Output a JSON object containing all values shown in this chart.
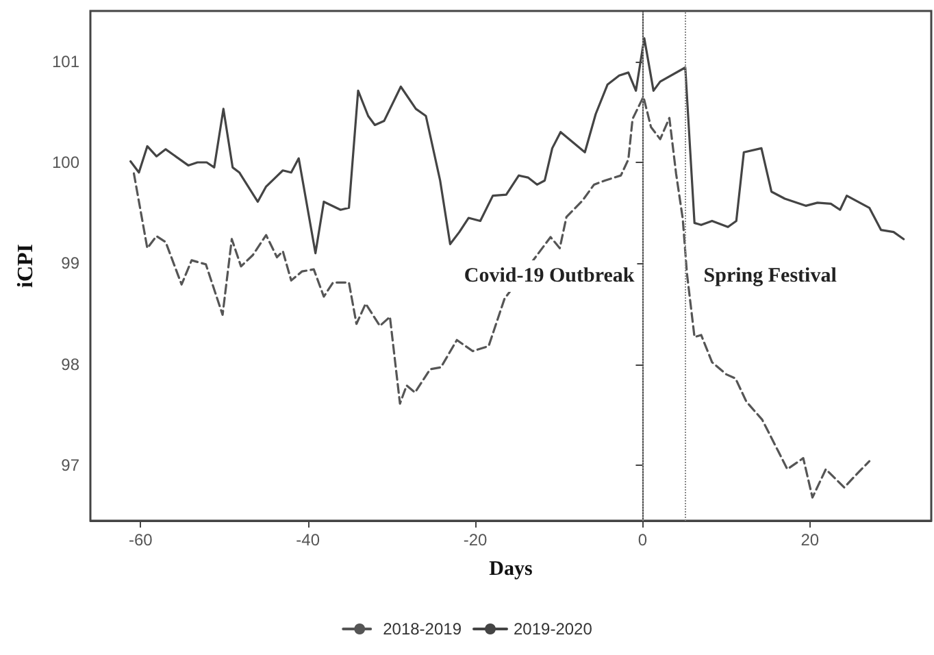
{
  "chart_data": {
    "type": "line",
    "xlabel": "Days",
    "ylabel": "iCPI",
    "xlim": [
      -66,
      34.5
    ],
    "xticks": [
      -60,
      -40,
      -20,
      0,
      20
    ],
    "ylim": [
      96.45,
      101.5
    ],
    "yticks": [
      97,
      98,
      99,
      100,
      101
    ],
    "grid": false,
    "legend": "bottom",
    "marker": "none",
    "ref_lines": [
      {
        "axis": "x",
        "value": 0,
        "label": "Covid-19 Outbreak",
        "color": "#888888",
        "line_style": "dotted"
      },
      {
        "axis": "x",
        "value": 5,
        "label": "Spring Festival",
        "color": "#888888",
        "line_style": "dotted"
      }
    ],
    "series": [
      {
        "name": "2018-2019",
        "color": "#555555",
        "line_style": "dashed",
        "x": [
          -60.8,
          -59.2,
          -58.1,
          -57.0,
          -55.1,
          -53.9,
          -52.2,
          -50.2,
          -49.1,
          -48.0,
          -46.6,
          -45.0,
          -43.7,
          -43.0,
          -42.0,
          -40.7,
          -39.3,
          -38.1,
          -37.0,
          -35.1,
          -34.2,
          -33.1,
          -31.4,
          -30.2,
          -29.0,
          -28.2,
          -27.2,
          -25.4,
          -24.1,
          -22.2,
          -20.3,
          -18.4,
          -16.5,
          -11.0,
          -9.9,
          -9.1,
          -7.2,
          -5.8,
          -4.5,
          -2.6,
          -1.7,
          -1.2,
          0.1,
          1.0,
          2.1,
          3.2,
          4.0,
          4.8,
          5.3,
          6.2,
          7.0,
          8.3,
          10.0,
          11.1,
          12.4,
          14.3,
          16.2,
          17.3,
          19.2,
          20.3,
          21.9,
          24.1,
          25.8,
          27.1
        ],
        "values": [
          99.89,
          99.15,
          99.27,
          99.21,
          98.79,
          99.03,
          98.99,
          98.49,
          99.24,
          98.97,
          99.08,
          99.28,
          99.06,
          99.12,
          98.83,
          98.92,
          98.94,
          98.67,
          98.81,
          98.81,
          98.4,
          98.6,
          98.38,
          98.47,
          97.61,
          97.79,
          97.72,
          97.95,
          97.97,
          98.24,
          98.13,
          98.18,
          98.65,
          99.26,
          99.15,
          99.46,
          99.62,
          99.78,
          99.82,
          99.87,
          100.03,
          100.43,
          100.65,
          100.35,
          100.23,
          100.44,
          99.89,
          99.44,
          98.9,
          98.27,
          98.29,
          98.02,
          97.9,
          97.86,
          97.63,
          97.45,
          97.14,
          96.96,
          97.07,
          96.68,
          96.96,
          96.78,
          96.93,
          97.04
        ]
      },
      {
        "name": "2019-2020",
        "color": "#444444",
        "line_style": "solid",
        "x": [
          -61.2,
          -60.2,
          -59.2,
          -58.1,
          -57.0,
          -54.3,
          -53.2,
          -52.1,
          -51.2,
          -50.1,
          -49.0,
          -48.2,
          -46.0,
          -45.0,
          -43.0,
          -42.0,
          -41.1,
          -39.1,
          -38.1,
          -36.1,
          -35.1,
          -34.0,
          -32.8,
          -32.0,
          -30.9,
          -28.9,
          -27.1,
          -25.9,
          -24.2,
          -23.0,
          -21.9,
          -20.8,
          -19.4,
          -17.9,
          -16.3,
          -14.8,
          -13.7,
          -12.6,
          -11.7,
          -10.8,
          -9.8,
          -6.9,
          -5.6,
          -4.2,
          -2.8,
          -1.7,
          -0.8,
          0.2,
          1.3,
          2.1,
          5.1,
          6.2,
          7.0,
          8.3,
          10.2,
          11.2,
          12.1,
          14.2,
          15.4,
          17.0,
          19.5,
          20.9,
          22.5,
          23.6,
          24.4,
          27.1,
          28.5,
          30.0,
          31.2
        ],
        "values": [
          100.01,
          99.9,
          100.16,
          100.06,
          100.13,
          99.97,
          100.0,
          100.0,
          99.95,
          100.53,
          99.95,
          99.9,
          99.61,
          99.76,
          99.92,
          99.9,
          100.04,
          99.1,
          99.61,
          99.53,
          99.55,
          100.71,
          100.46,
          100.37,
          100.41,
          100.75,
          100.53,
          100.46,
          99.82,
          99.19,
          99.31,
          99.45,
          99.42,
          99.67,
          99.68,
          99.87,
          99.85,
          99.78,
          99.82,
          100.14,
          100.3,
          100.1,
          100.48,
          100.77,
          100.86,
          100.89,
          100.71,
          101.23,
          100.71,
          100.8,
          100.94,
          99.4,
          99.38,
          99.42,
          99.36,
          99.42,
          100.1,
          100.14,
          99.71,
          99.64,
          99.57,
          99.6,
          99.59,
          99.53,
          99.67,
          99.55,
          99.33,
          99.31,
          99.24
        ]
      }
    ]
  }
}
